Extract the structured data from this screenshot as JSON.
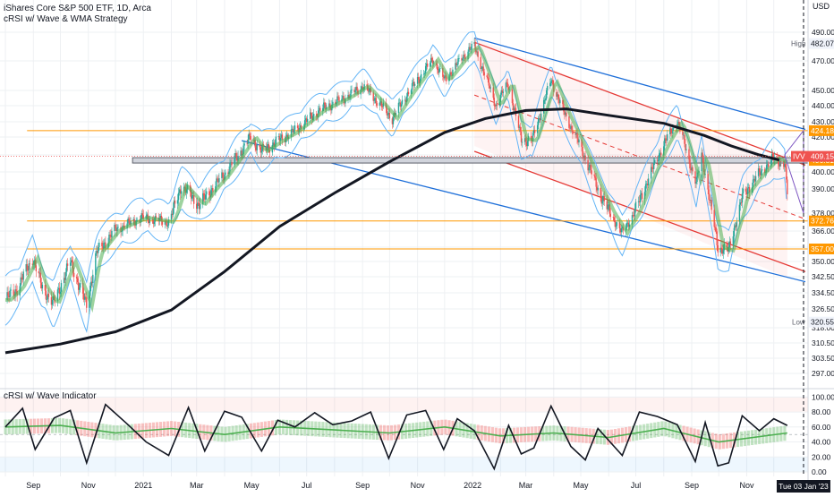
{
  "header": {
    "title": "iShares Core S&P 500 ETF, 1D, Arca",
    "indicator": "cRSI w/ Wave & WMA Strategy"
  },
  "sub_panel": {
    "title": "cRSI w/ Wave Indicator"
  },
  "currency": "USD",
  "crosshair_date": "Tue 03 Jan '23",
  "colors": {
    "ema200": "#131722",
    "channel_blue": "#1e6fd9",
    "channel_red": "#e53935",
    "level": "#ff9800",
    "band": "#64b5f6",
    "up": "#26a69a",
    "down": "#ef5350",
    "wave_green": "#4caf50",
    "wave_red": "#ef5350"
  },
  "chart_data": [
    {
      "type": "line",
      "title": "iShares Core S&P 500 ETF, 1D, Arca",
      "ylabel": "USD",
      "ylim": [
        290,
        496
      ],
      "x_ticks": [
        "Sep",
        "Nov",
        "2021",
        "Mar",
        "May",
        "Jul",
        "Sep",
        "Nov",
        "2022",
        "Mar",
        "May",
        "Jul",
        "Sep",
        "Nov"
      ],
      "y_ticks": [
        297.0,
        303.5,
        310.5,
        318.0,
        326.5,
        334.5,
        342.5,
        350.0,
        358.0,
        366.0,
        378.0,
        390.0,
        400.0,
        410.0,
        420.0,
        430.0,
        440.0,
        450.0,
        470.0,
        490.0
      ],
      "series": [
        {
          "type": "price",
          "x": [
            "2020-08-01",
            "2020-08-15",
            "2020-08-31",
            "2020-09-10",
            "2020-09-23",
            "2020-10-12",
            "2020-10-30",
            "2020-11-10",
            "2020-12-01",
            "2020-12-31",
            "2021-01-29",
            "2021-02-12",
            "2021-03-04",
            "2021-03-31",
            "2021-04-30",
            "2021-05-12",
            "2021-06-15",
            "2021-07-15",
            "2021-08-15",
            "2021-09-02",
            "2021-10-04",
            "2021-10-20",
            "2021-11-18",
            "2021-12-01",
            "2021-12-28",
            "2022-01-03",
            "2022-01-27",
            "2022-02-09",
            "2022-02-24",
            "2022-03-08",
            "2022-03-29",
            "2022-04-12",
            "2022-05-06",
            "2022-05-20",
            "2022-06-16",
            "2022-07-05",
            "2022-07-29",
            "2022-08-16",
            "2022-09-06",
            "2022-09-12",
            "2022-09-30",
            "2022-10-12",
            "2022-10-27",
            "2022-11-15",
            "2022-12-01",
            "2022-12-13",
            "2022-12-16"
          ],
          "values": [
            331.0,
            337.0,
            352.0,
            338.0,
            329.0,
            350.0,
            328.0,
            355.0,
            367.0,
            375.0,
            372.0,
            392.0,
            382.0,
            398.0,
            420.0,
            412.0,
            423.0,
            437.0,
            446.0,
            453.0,
            432.0,
            447.0,
            471.0,
            457.0,
            478.0,
            480.0,
            440.0,
            455.0,
            419.0,
            418.0,
            457.0,
            436.0,
            408.0,
            390.0,
            365.0,
            384.0,
            413.0,
            430.0,
            393.0,
            410.0,
            358.0,
            356.0,
            386.0,
            399.0,
            408.0,
            405.0,
            388.0
          ]
        },
        {
          "name": "",
          "type": "ema200",
          "x": [
            "2020-08-01",
            "2020-10-01",
            "2020-12-01",
            "2021-02-01",
            "2021-04-01",
            "2021-06-01",
            "2021-08-01",
            "2021-10-01",
            "2021-12-01",
            "2022-01-15",
            "2022-03-01",
            "2022-04-15",
            "2022-06-01",
            "2022-08-01",
            "2022-09-15",
            "2022-10-15",
            "2022-11-15",
            "2022-12-07"
          ],
          "values": [
            306.0,
            310.0,
            316.0,
            326.0,
            345.0,
            369.0,
            388.0,
            406.0,
            423.0,
            432.0,
            437.0,
            438.0,
            434.0,
            429.0,
            421.0,
            415.0,
            410.0,
            407.0
          ]
        }
      ],
      "levels": [
        {
          "label": "424.18",
          "value": 424.18
        },
        {
          "label": "406.81",
          "value": 406.81
        },
        {
          "label": "372.76",
          "value": 372.76
        },
        {
          "label": "357.00",
          "value": 357.0
        }
      ],
      "price_labels": [
        {
          "label": "IVV",
          "value": "409.15"
        },
        {
          "label": "High",
          "value": "482.07"
        },
        {
          "label": "Low",
          "value": "320.55"
        }
      ],
      "grid": true,
      "legend": "none"
    },
    {
      "type": "line",
      "title": "cRSI w/ Wave Indicator",
      "ylim": [
        -6,
        104
      ],
      "y_ticks": [
        0.0,
        20.0,
        40.0,
        60.0,
        80.0,
        100.0
      ],
      "series": [
        {
          "type": "crsi",
          "x": [
            "2020-08-01",
            "2020-08-20",
            "2020-09-03",
            "2020-09-24",
            "2020-10-12",
            "2020-10-30",
            "2020-11-20",
            "2020-12-15",
            "2021-01-04",
            "2021-01-29",
            "2021-02-20",
            "2021-03-10",
            "2021-04-01",
            "2021-04-20",
            "2021-05-12",
            "2021-05-30",
            "2021-06-18",
            "2021-07-10",
            "2021-07-30",
            "2021-08-20",
            "2021-09-10",
            "2021-09-30",
            "2021-10-20",
            "2021-11-10",
            "2021-11-30",
            "2021-12-15",
            "2022-01-03",
            "2022-01-25",
            "2022-02-10",
            "2022-02-24",
            "2022-03-10",
            "2022-03-29",
            "2022-04-20",
            "2022-05-06",
            "2022-05-20",
            "2022-06-16",
            "2022-07-05",
            "2022-07-25",
            "2022-08-16",
            "2022-09-05",
            "2022-09-16",
            "2022-09-30",
            "2022-10-12",
            "2022-10-27",
            "2022-11-15",
            "2022-12-01",
            "2022-12-16"
          ],
          "values": [
            60.0,
            85.0,
            30.0,
            72.0,
            82.0,
            12.0,
            90.0,
            63.0,
            40.0,
            22.0,
            86.0,
            28.0,
            81.0,
            73.0,
            28.0,
            69.0,
            60.0,
            79.0,
            63.0,
            68.0,
            80.0,
            18.0,
            76.0,
            82.0,
            30.0,
            71.0,
            55.0,
            4.0,
            62.0,
            24.0,
            32.0,
            88.0,
            34.0,
            16.0,
            58.0,
            22.0,
            80.0,
            74.0,
            63.0,
            14.0,
            66.0,
            8.0,
            12.0,
            75.0,
            55.0,
            71.0,
            62.0
          ]
        },
        {
          "type": "wave",
          "x": [
            "2020-08-01",
            "2020-10-01",
            "2020-12-01",
            "2021-02-01",
            "2021-04-01",
            "2021-06-01",
            "2021-08-01",
            "2021-10-01",
            "2021-12-01",
            "2022-02-01",
            "2022-04-01",
            "2022-06-01",
            "2022-08-01",
            "2022-10-01",
            "2022-12-16"
          ],
          "values": [
            60.0,
            62.0,
            52.0,
            58.0,
            50.0,
            60.0,
            56.0,
            52.0,
            60.0,
            48.0,
            52.0,
            46.0,
            58.0,
            40.0,
            52.0
          ]
        }
      ],
      "grid": true,
      "legend": "none"
    }
  ]
}
